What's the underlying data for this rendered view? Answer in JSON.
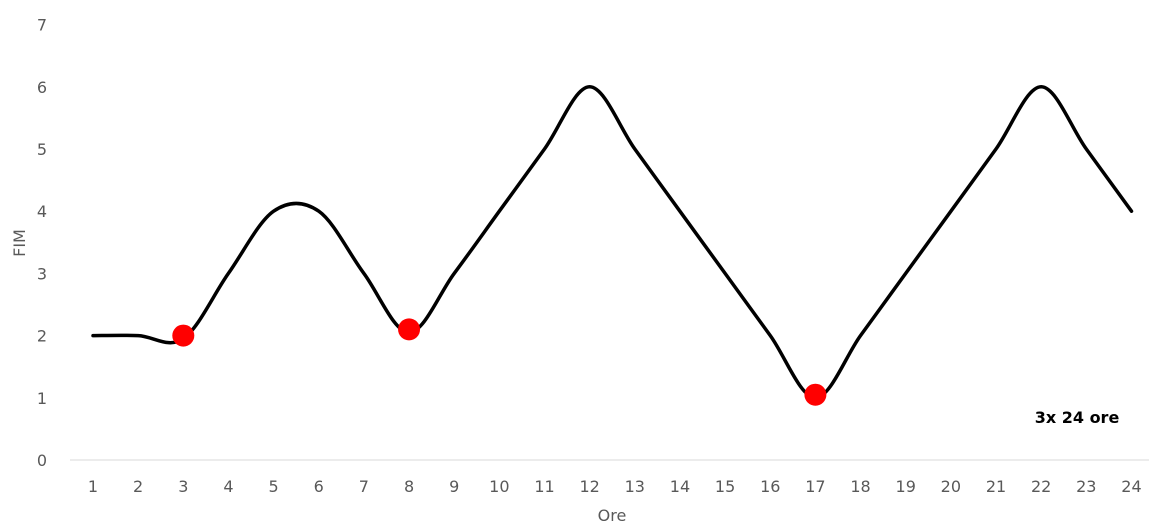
{
  "chart_data": {
    "type": "line",
    "categories": [
      "1",
      "2",
      "3",
      "4",
      "5",
      "6",
      "7",
      "8",
      "9",
      "10",
      "11",
      "12",
      "13",
      "14",
      "15",
      "16",
      "17",
      "18",
      "19",
      "20",
      "21",
      "22",
      "23",
      "24"
    ],
    "series": [
      {
        "values": [
          2,
          2,
          1.95,
          3,
          4,
          4,
          3,
          2.05,
          3,
          4,
          5,
          6,
          5,
          4,
          3,
          2,
          1,
          2,
          3,
          4,
          5,
          6,
          5,
          4
        ],
        "color": "#000000",
        "smooth": true
      }
    ],
    "highlight_points": [
      {
        "x": "3",
        "y": 2,
        "color": "#ff0000"
      },
      {
        "x": "8",
        "y": 2.1,
        "color": "#ff0000"
      },
      {
        "x": "17",
        "y": 1.05,
        "color": "#ff0000"
      }
    ],
    "xlabel": "Ore",
    "ylabel": "FIM",
    "ylim": [
      0,
      7
    ],
    "yticks": [
      "0",
      "1",
      "2",
      "3",
      "4",
      "5",
      "6",
      "7"
    ],
    "grid": false,
    "annotation": "3x 24 ore"
  }
}
